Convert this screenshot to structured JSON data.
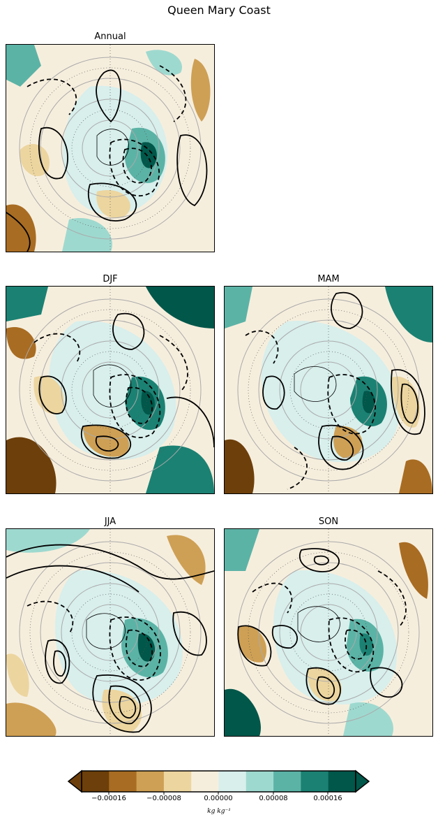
{
  "figure": {
    "title": "Queen Mary Coast"
  },
  "panels": [
    {
      "key": "annual",
      "title": "Annual"
    },
    {
      "key": "djf",
      "title": "DJF"
    },
    {
      "key": "mam",
      "title": "MAM"
    },
    {
      "key": "jja",
      "title": "JJA"
    },
    {
      "key": "son",
      "title": "SON"
    }
  ],
  "colorbar": {
    "colors": [
      "#6d3f0a",
      "#a86c22",
      "#cea055",
      "#ecd59f",
      "#f6eedd",
      "#d8efec",
      "#9ed9cf",
      "#5bb3a6",
      "#1b8173",
      "#00574a"
    ],
    "ticks": [
      "−0.00016",
      "−0.00008",
      "0.00000",
      "0.00008",
      "0.00016"
    ],
    "units": "kg kg⁻¹"
  }
}
